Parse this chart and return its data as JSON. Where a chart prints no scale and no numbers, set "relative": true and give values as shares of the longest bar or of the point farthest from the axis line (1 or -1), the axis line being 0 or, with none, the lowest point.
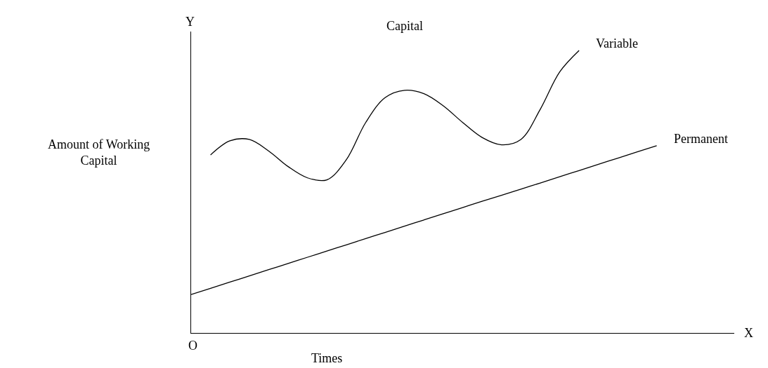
{
  "chart_data": {
    "type": "line",
    "relative": true,
    "xlabel": "Times",
    "ylabel": "Amount of Working Capital",
    "annotations": [
      "Y",
      "X",
      "O",
      "Capital"
    ],
    "categories": [
      null,
      null,
      null,
      null,
      null,
      null,
      null,
      null,
      null,
      null,
      null,
      null,
      null,
      null,
      null,
      null,
      null,
      null,
      null,
      null,
      null,
      null,
      null,
      null,
      null,
      null,
      null,
      null,
      null
    ],
    "series": [
      {
        "name": "Variable",
        "color": "#000000",
        "values": [
          null,
          0.63,
          0.68,
          0.685,
          0.644,
          0.589,
          0.549,
          0.542,
          0.613,
          0.745,
          0.833,
          0.859,
          0.847,
          0.804,
          0.745,
          0.692,
          0.666,
          0.685,
          0.792,
          0.924,
          1.0,
          null,
          null,
          null,
          null,
          null,
          null,
          null,
          null
        ]
      },
      {
        "name": "Permanent",
        "color": "#000000",
        "values": [
          0.136,
          0.158,
          0.18,
          0.202,
          0.224,
          0.246,
          0.268,
          0.29,
          0.312,
          0.334,
          0.356,
          0.378,
          0.4,
          0.422,
          0.444,
          0.466,
          0.487,
          0.509,
          0.531,
          0.553,
          0.575,
          0.597,
          0.619,
          0.641,
          0.663,
          null,
          null,
          null,
          null
        ]
      }
    ],
    "legend": false,
    "marker": "none",
    "line_style": "solid"
  }
}
